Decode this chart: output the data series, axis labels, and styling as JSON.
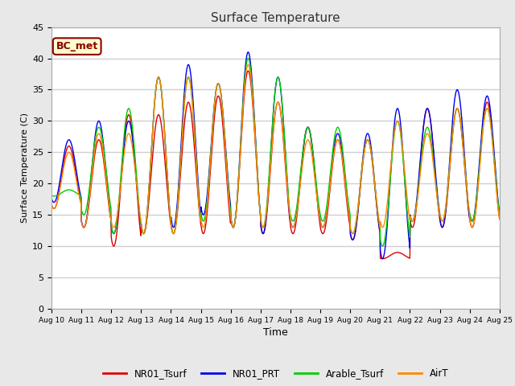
{
  "title": "Surface Temperature",
  "xlabel": "Time",
  "ylabel": "Surface Temperature (C)",
  "ylim": [
    0,
    45
  ],
  "xlim": [
    0,
    15
  ],
  "fig_bg_color": "#e8e8e8",
  "plot_bg_color": "#ffffff",
  "grid_color": "#d0d0d0",
  "annotation_text": "BC_met",
  "annotation_bg": "#ffffcc",
  "annotation_border": "#8B0000",
  "legend_labels": [
    "NR01_Tsurf",
    "NR01_PRT",
    "Arable_Tsurf",
    "AirT"
  ],
  "line_colors": [
    "#dd0000",
    "#0000ee",
    "#00cc00",
    "#ff8800"
  ],
  "xtick_labels": [
    "Aug 10",
    "Aug 11",
    "Aug 12",
    "Aug 13",
    "Aug 14",
    "Aug 15",
    "Aug 16",
    "Aug 17",
    "Aug 18",
    "Aug 19",
    "Aug 20",
    "Aug 21",
    "Aug 22",
    "Aug 23",
    "Aug 24",
    "Aug 25"
  ],
  "ytick_values": [
    0,
    5,
    10,
    15,
    20,
    25,
    30,
    35,
    40,
    45
  ],
  "num_days": 15,
  "points_per_day": 96
}
